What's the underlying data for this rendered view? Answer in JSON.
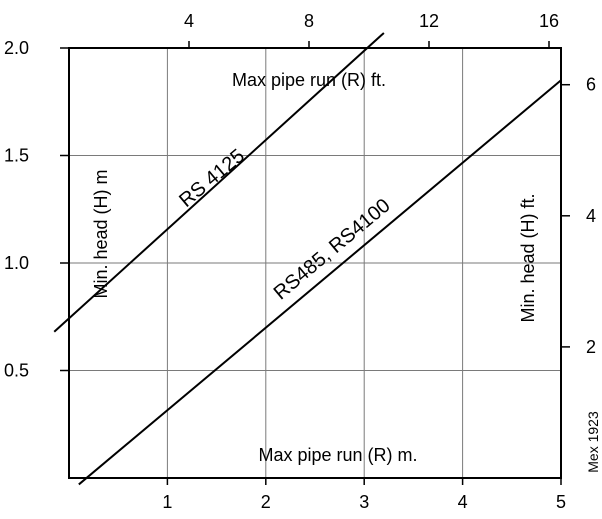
{
  "chart_data": {
    "type": "line",
    "title": "",
    "x_bottom": {
      "label": "Max pipe run (R) m.",
      "ticks": [
        1,
        2,
        3,
        4,
        5
      ],
      "range": [
        0,
        5
      ]
    },
    "x_top": {
      "label": "Max pipe run (R) ft.",
      "ticks": [
        4,
        8,
        12,
        16
      ],
      "range": [
        0,
        16.4
      ]
    },
    "y_left": {
      "label": "Min. head (H) m",
      "ticks": [
        "0.5",
        "1.0",
        "1.5",
        "2.0"
      ],
      "range": [
        0,
        2.0
      ]
    },
    "y_right": {
      "label": "Min. head (H) ft.",
      "ticks": [
        2,
        4,
        6
      ],
      "range": [
        0,
        6.56
      ]
    },
    "grid": true,
    "series": [
      {
        "name": "RS 4125",
        "x": [
          -0.15,
          3.2
        ],
        "y": [
          0.68,
          2.07
        ]
      },
      {
        "name": "RS485, RS4100",
        "x": [
          0.1,
          5.0
        ],
        "y": [
          -0.03,
          1.85
        ]
      }
    ],
    "reference": "Mex 1923"
  }
}
